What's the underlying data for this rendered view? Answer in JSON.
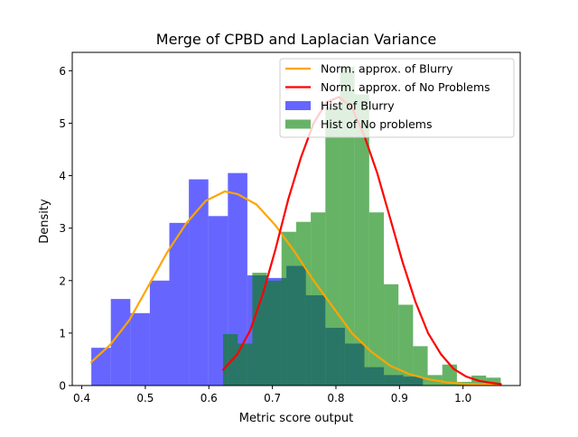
{
  "chart_data": {
    "type": "histogram",
    "title": "Merge of CPBD and Laplacian Variance",
    "xlabel": "Metric score output",
    "ylabel": "Density",
    "xlim": [
      0.385,
      1.09
    ],
    "ylim": [
      0,
      6.35
    ],
    "xticks": [
      0.4,
      0.5,
      0.6,
      0.7,
      0.8,
      0.9,
      1.0
    ],
    "xtick_labels": [
      "0.4",
      "0.5",
      "0.6",
      "0.7",
      "0.8",
      "0.9",
      "1.0"
    ],
    "yticks": [
      0,
      1,
      2,
      3,
      4,
      5,
      6
    ],
    "ytick_labels": [
      "0",
      "1",
      "2",
      "3",
      "4",
      "5",
      "6"
    ],
    "legend_position": "top-right",
    "histograms": [
      {
        "name": "Hist of Blurry",
        "color": "#0000ff",
        "opacity": 0.6,
        "edges": [
          0.415,
          0.4457,
          0.4764,
          0.5071,
          0.5378,
          0.5685,
          0.5992,
          0.6299,
          0.6606,
          0.6913,
          0.722,
          0.7527,
          0.7834,
          0.8141,
          0.8448,
          0.8755,
          0.9062,
          0.9369
        ],
        "values": [
          0.72,
          1.65,
          1.38,
          2.0,
          3.1,
          3.93,
          3.23,
          4.05,
          2.1,
          2.05,
          2.28,
          1.72,
          1.1,
          0.8,
          0.35,
          0.2,
          0.17
        ]
      },
      {
        "name": "Hist of No problems",
        "color": "#008000",
        "opacity": 0.6,
        "edges": [
          0.6224,
          0.6454,
          0.6684,
          0.6914,
          0.7144,
          0.7374,
          0.7604,
          0.7834,
          0.8064,
          0.8294,
          0.8524,
          0.8754,
          0.8984,
          0.9214,
          0.9444,
          0.9674,
          0.9904,
          1.0134,
          1.0364,
          1.0594
        ],
        "values": [
          0.98,
          0.8,
          2.15,
          2.0,
          2.93,
          3.12,
          3.3,
          5.3,
          6.08,
          5.55,
          3.3,
          1.93,
          1.54,
          0.75,
          0.2,
          0.4,
          0.07,
          0.19,
          0.15
        ]
      }
    ],
    "series": [
      {
        "name": "Norm. approx. of Blurry",
        "color": "#ffa500",
        "x": [
          0.415,
          0.445,
          0.475,
          0.505,
          0.535,
          0.565,
          0.595,
          0.625,
          0.645,
          0.675,
          0.705,
          0.735,
          0.765,
          0.795,
          0.825,
          0.855,
          0.885,
          0.915,
          0.945,
          0.975,
          1.005,
          1.06
        ],
        "y": [
          0.45,
          0.78,
          1.25,
          1.9,
          2.55,
          3.1,
          3.52,
          3.7,
          3.65,
          3.45,
          3.05,
          2.55,
          2.0,
          1.5,
          1.0,
          0.65,
          0.38,
          0.22,
          0.12,
          0.06,
          0.03,
          0.01
        ]
      },
      {
        "name": "Norm. approx. of No Problems",
        "color": "#ff0000",
        "x": [
          0.6224,
          0.645,
          0.665,
          0.685,
          0.705,
          0.725,
          0.745,
          0.765,
          0.785,
          0.805,
          0.825,
          0.845,
          0.865,
          0.885,
          0.905,
          0.925,
          0.945,
          0.965,
          0.985,
          1.005,
          1.025,
          1.045,
          1.0594
        ],
        "y": [
          0.3,
          0.6,
          1.05,
          1.75,
          2.6,
          3.55,
          4.35,
          5.0,
          5.4,
          5.5,
          5.3,
          4.75,
          4.05,
          3.2,
          2.35,
          1.6,
          1.0,
          0.6,
          0.32,
          0.17,
          0.09,
          0.05,
          0.03
        ]
      }
    ]
  }
}
